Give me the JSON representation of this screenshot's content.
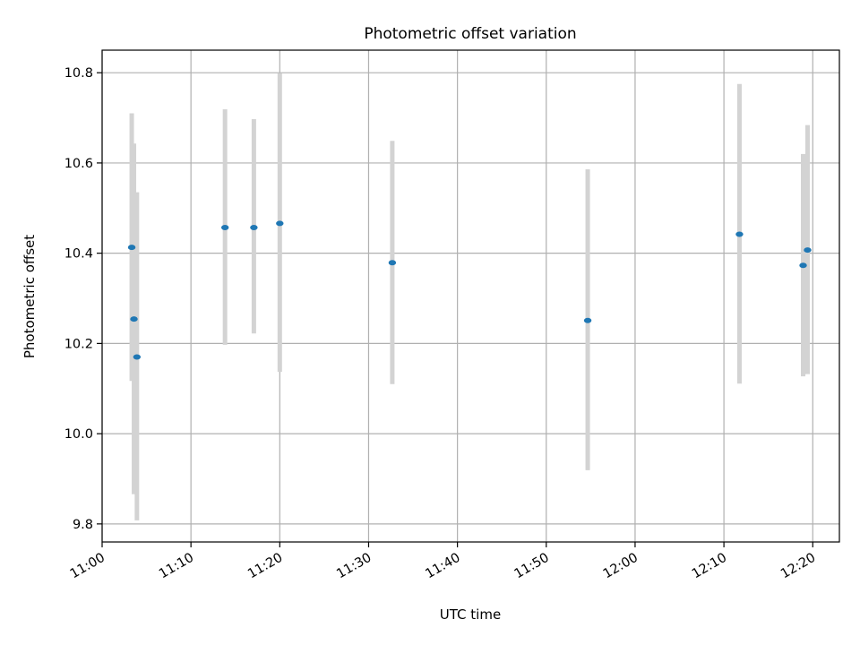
{
  "chart_data": {
    "type": "scatter",
    "title": "Photometric offset variation",
    "xlabel": "UTC time",
    "ylabel": "Photometric offset",
    "x_axis_type": "time",
    "xlim": [
      "11:00",
      "12:23"
    ],
    "ylim": [
      9.76,
      10.85
    ],
    "x_ticks": [
      "11:00",
      "11:10",
      "11:20",
      "11:30",
      "11:40",
      "11:50",
      "12:00",
      "12:10",
      "12:20"
    ],
    "y_ticks": [
      "9.8",
      "10.0",
      "10.2",
      "10.4",
      "10.6",
      "10.8"
    ],
    "grid": true,
    "colors": {
      "point": "#1f77b4",
      "errorbar": "#d3d3d3",
      "grid": "#b0b0b0"
    },
    "series": [
      {
        "points": [
          {
            "x": "11:03:20",
            "y": 10.413,
            "yerr_low": 10.117,
            "yerr_high": 10.71
          },
          {
            "x": "11:03:35",
            "y": 10.254,
            "yerr_low": 9.866,
            "yerr_high": 10.643
          },
          {
            "x": "11:03:55",
            "y": 10.17,
            "yerr_low": 9.808,
            "yerr_high": 10.535
          },
          {
            "x": "11:13:50",
            "y": 10.457,
            "yerr_low": 10.197,
            "yerr_high": 10.719
          },
          {
            "x": "11:17:05",
            "y": 10.457,
            "yerr_low": 10.222,
            "yerr_high": 10.697
          },
          {
            "x": "11:20:00",
            "y": 10.466,
            "yerr_low": 10.137,
            "yerr_high": 10.799
          },
          {
            "x": "11:32:40",
            "y": 10.379,
            "yerr_low": 10.11,
            "yerr_high": 10.649
          },
          {
            "x": "11:54:40",
            "y": 10.251,
            "yerr_low": 9.919,
            "yerr_high": 10.586
          },
          {
            "x": "12:11:45",
            "y": 10.442,
            "yerr_low": 10.111,
            "yerr_high": 10.775
          },
          {
            "x": "12:18:55",
            "y": 10.373,
            "yerr_low": 10.127,
            "yerr_high": 10.62
          },
          {
            "x": "12:19:25",
            "y": 10.407,
            "yerr_low": 10.132,
            "yerr_high": 10.684
          }
        ]
      }
    ]
  }
}
